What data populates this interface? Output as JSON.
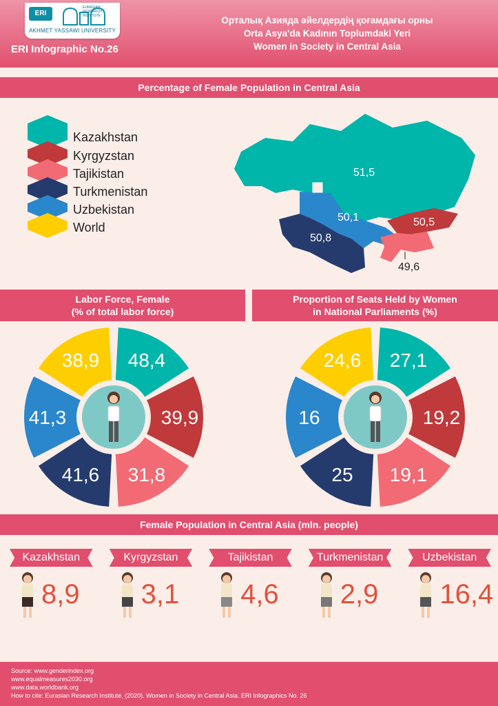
{
  "header": {
    "logo_text": "ERI",
    "logo_university": "AKHMET YASSAWI UNIVERSITY",
    "logo_institute": "EURASIAN RESEARCH INSTITUTE",
    "infographic_label": "ERI Infographic No.26",
    "titles": [
      "Орталық Азияда әйелдердің қоғамдағы орны",
      "Orta Asya'da Kadının Toplumdaki Yeri",
      "Women in Society in Central Asia"
    ]
  },
  "colors": {
    "Kazakhstan": "#00b5a9",
    "Kyrgyzstan": "#c0393b",
    "Tajikistan": "#f26a74",
    "Turkmenistan": "#253b6e",
    "Uzbekistan": "#2a87cc",
    "World": "#ffce00",
    "accent": "#e14e6e"
  },
  "section_titles": {
    "female_population_pct": "Percentage of Female Population in Central Asia",
    "labor_force": [
      "Labor Force, Female",
      "(% of total labor force)"
    ],
    "parliament": [
      "Proportion of Seats Held by Women",
      "in National Parliaments (%)"
    ],
    "female_population_mln": "Female Population in Central Asia (mln. people)"
  },
  "legend": [
    "Kazakhstan",
    "Kyrgyzstan",
    "Tajikistan",
    "Turkmenistan",
    "Uzbekistan",
    "World"
  ],
  "chart_data": [
    {
      "type": "map",
      "title": "Percentage of Female Population in Central Asia",
      "categories": [
        "Kazakhstan",
        "Kyrgyzstan",
        "Tajikistan",
        "Turkmenistan",
        "Uzbekistan"
      ],
      "values": [
        51.5,
        50.5,
        49.6,
        50.8,
        50.1
      ],
      "labels": [
        "51,5",
        "50,5",
        "49,6",
        "50,8",
        "50,1"
      ]
    },
    {
      "type": "pie",
      "title": "Labor Force, Female (% of total labor force)",
      "categories": [
        "Kazakhstan",
        "Kyrgyzstan",
        "Tajikistan",
        "Turkmenistan",
        "Uzbekistan",
        "World"
      ],
      "values": [
        48.4,
        39.9,
        31.8,
        41.6,
        41.3,
        38.9
      ],
      "labels": [
        "48,4",
        "39,9",
        "31,8",
        "41,6",
        "41,3",
        "38,9"
      ]
    },
    {
      "type": "pie",
      "title": "Proportion of Seats Held by Women in National Parliaments (%)",
      "categories": [
        "Kazakhstan",
        "Kyrgyzstan",
        "Tajikistan",
        "Turkmenistan",
        "Uzbekistan",
        "World"
      ],
      "values": [
        27.1,
        19.2,
        19.1,
        25,
        16,
        24.6
      ],
      "labels": [
        "27,1",
        "19,2",
        "19,1",
        "25",
        "16",
        "24,6"
      ]
    },
    {
      "type": "table",
      "title": "Female Population in Central Asia (mln. people)",
      "categories": [
        "Kazakhstan",
        "Kyrgyzstan",
        "Tajikistan",
        "Turkmenistan",
        "Uzbekistan"
      ],
      "values": [
        8.9,
        3.1,
        4.6,
        2.9,
        16.4
      ],
      "labels": [
        "8,9",
        "3,1",
        "4,6",
        "2,9",
        "16,4"
      ]
    }
  ],
  "footer": {
    "lines": [
      "Source: www.genderindex.org",
      "www.equalmeasures2030.org",
      "www.data.worldbank.org",
      "How to cite: Eurasian Research Institute, (2020). Women in Society in Central Asia. ERI Infographics No. 26"
    ]
  }
}
